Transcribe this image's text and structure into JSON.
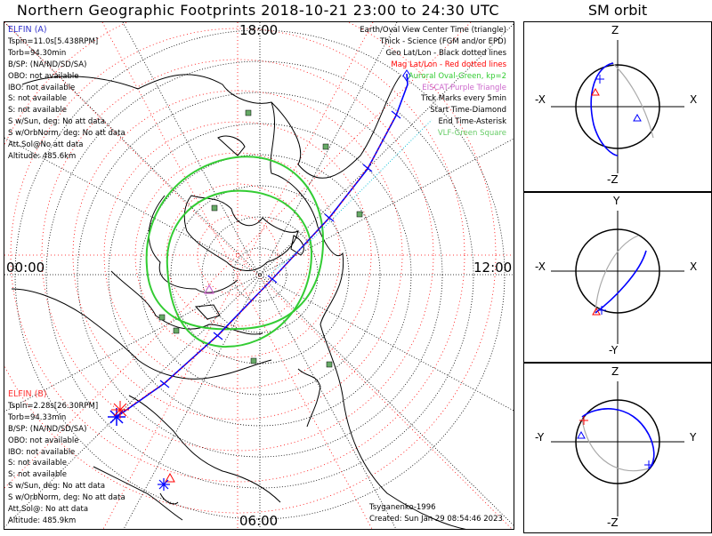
{
  "title": "Northern Geographic Footprints 2018-10-21 23:00 to 24:30 UTC",
  "sm_title": "SM orbit",
  "hour_labels": {
    "top": "18:00",
    "left": "00:00",
    "right": "12:00",
    "bottom": "06:00"
  },
  "legend": [
    {
      "text": "Earth/Oval View Center Time (triangle)",
      "color": "#000000"
    },
    {
      "text": "Thick - Science (FGM and/or EPD)",
      "color": "#000000"
    },
    {
      "text": "Geo Lat/Lon - Black dotted lines",
      "color": "#000000"
    },
    {
      "text": "Mag Lat/Lon - Red dotted lines",
      "color": "#ff0000"
    },
    {
      "text": "Auroral Oval-Green, kp=2",
      "color": "#33cc33"
    },
    {
      "text": "EISCAT-Purple Triangle",
      "color": "#cc66cc"
    },
    {
      "text": "Tick Marks every 5min",
      "color": "#000000"
    },
    {
      "text": "Start Time-Diamond",
      "color": "#000000"
    },
    {
      "text": "End Time-Asterisk",
      "color": "#000000"
    },
    {
      "text": "VLF-Green Square",
      "color": "#66cc66"
    }
  ],
  "elfin_a": {
    "label": "ELFIN (A)",
    "color": "#3333cc",
    "lines": [
      "Tspin=11.0s[5.438RPM]",
      "Torb=94.30min",
      "B/SP: (NA/ND/SD/SA)",
      "OBO: not available",
      "IBO: not available",
      "S: not available",
      "S: not available",
      "S w/Sun, deg: No att data",
      "S w/OrbNorm, deg: No att data",
      "Att.Sol@No att data",
      "Altitude: 485.6km"
    ]
  },
  "elfin_b": {
    "label": "ELFIN (B)",
    "color": "#ff3333",
    "lines": [
      "Tspin=2.28s[26.30RPM]",
      "Torb=94.33min",
      "B/SP: (NA/ND/SD/SA)",
      "OBO: not available",
      "IBO: not available",
      "S: not available",
      "S: not available",
      "S w/Sun, deg: No att data",
      "S w/OrbNorm, deg: No att data",
      "Att.Sol@: No att data",
      "Altitude: 485.9km"
    ]
  },
  "footer": {
    "model": "Tsyganenko-1996",
    "created": "Created: Sun Jan 29 08:54:46 2023"
  },
  "sm_panels": [
    {
      "top": "Z",
      "bottom": "-Z",
      "left": "-X",
      "right": "X"
    },
    {
      "top": "Y",
      "bottom": "-Y",
      "left": "-X",
      "right": "X"
    },
    {
      "top": "Z",
      "bottom": "-Z",
      "left": "-Y",
      "right": "Y"
    }
  ],
  "colors": {
    "trace": "#0000ff",
    "oval": "#33cc33",
    "mag_grid": "#ff0000",
    "vlf": "#66aa66",
    "land": "#000000"
  }
}
